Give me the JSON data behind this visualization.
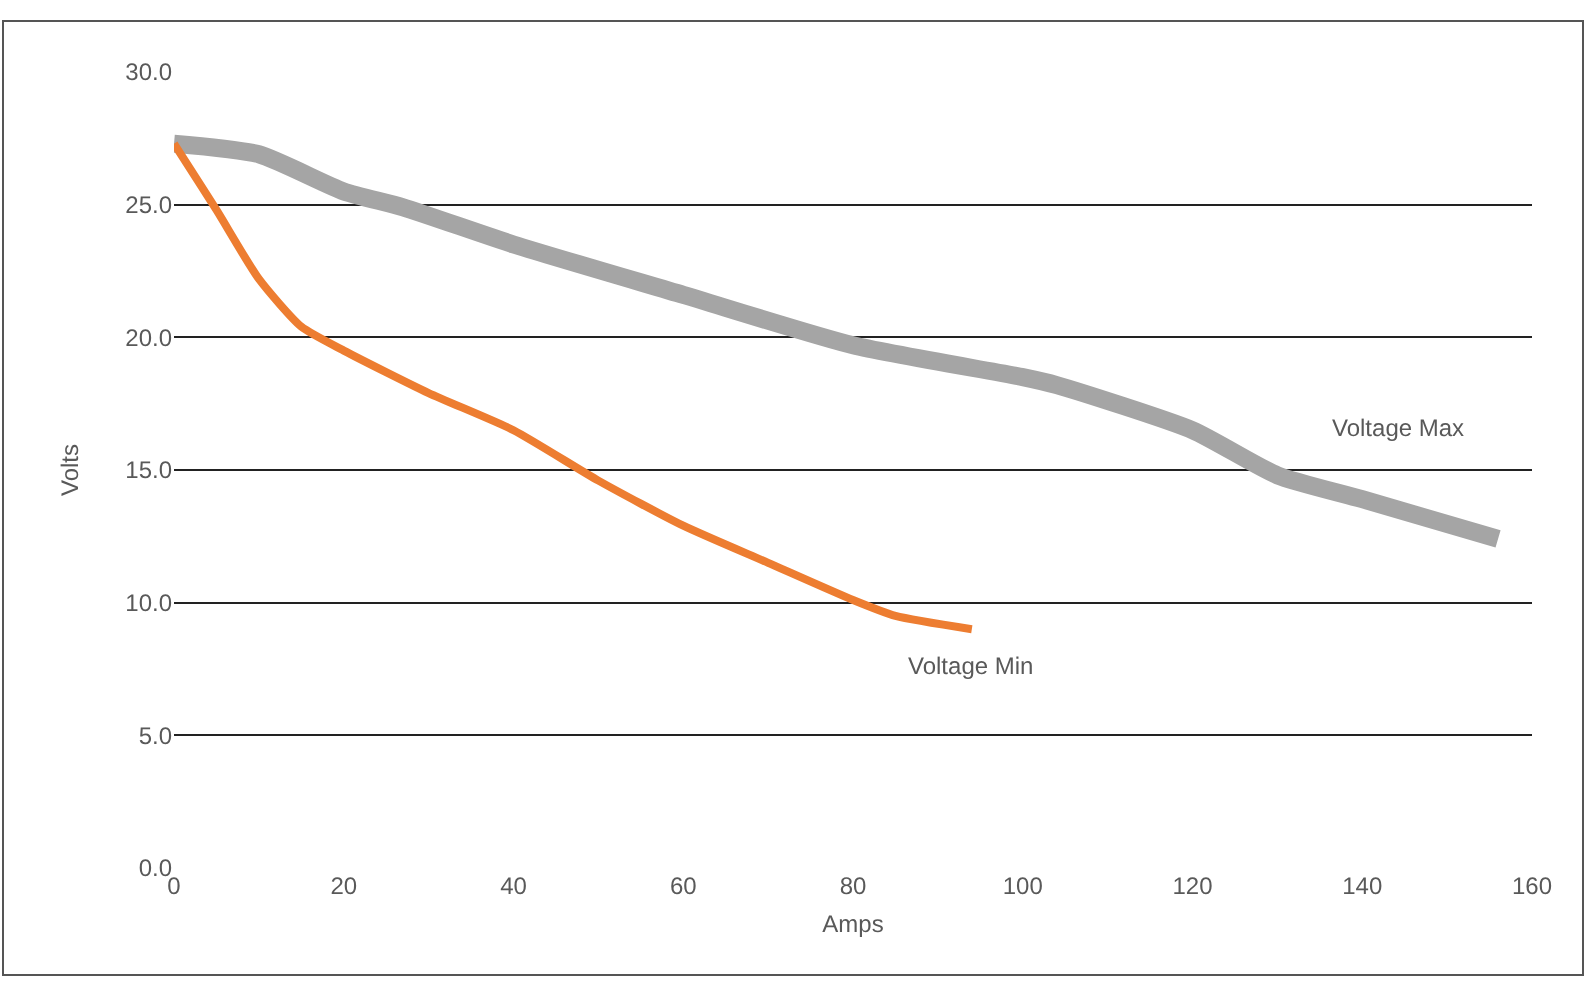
{
  "chart_data": {
    "type": "line",
    "xlabel": "Amps",
    "ylabel": "Volts",
    "xlim": [
      0,
      160
    ],
    "xticks": [
      0,
      20,
      40,
      60,
      80,
      100,
      120,
      140,
      160
    ],
    "ylim": [
      0,
      30
    ],
    "yticks": [
      {
        "value": 0,
        "label": "0.0"
      },
      {
        "value": 5,
        "label": "5.0"
      },
      {
        "value": 10,
        "label": "10.0"
      },
      {
        "value": 15,
        "label": "15.0"
      },
      {
        "value": 20,
        "label": "20.0"
      },
      {
        "value": 25,
        "label": "25.0"
      },
      {
        "value": 30,
        "label": "30.0"
      }
    ],
    "grid": "y",
    "legend": false,
    "marker": "none",
    "line_style": "solid",
    "series": [
      {
        "name": "Voltage Max",
        "color": "#a5a5a5",
        "x": [
          0,
          10,
          20,
          27,
          40,
          60,
          80,
          100,
          104,
          120,
          130,
          140,
          156
        ],
        "values": [
          27.3,
          26.9,
          25.5,
          24.9,
          23.5,
          21.6,
          19.7,
          18.5,
          18.2,
          16.5,
          14.8,
          13.9,
          12.4
        ]
      },
      {
        "name": "Voltage Min",
        "color": "#ed7d31",
        "x": [
          0,
          5,
          10,
          15,
          20,
          30,
          40,
          50,
          60,
          70,
          80,
          85,
          94
        ],
        "values": [
          27.3,
          24.8,
          22.2,
          20.4,
          19.5,
          17.9,
          16.5,
          14.6,
          12.9,
          11.5,
          10.1,
          9.5,
          9.0
        ]
      }
    ]
  }
}
